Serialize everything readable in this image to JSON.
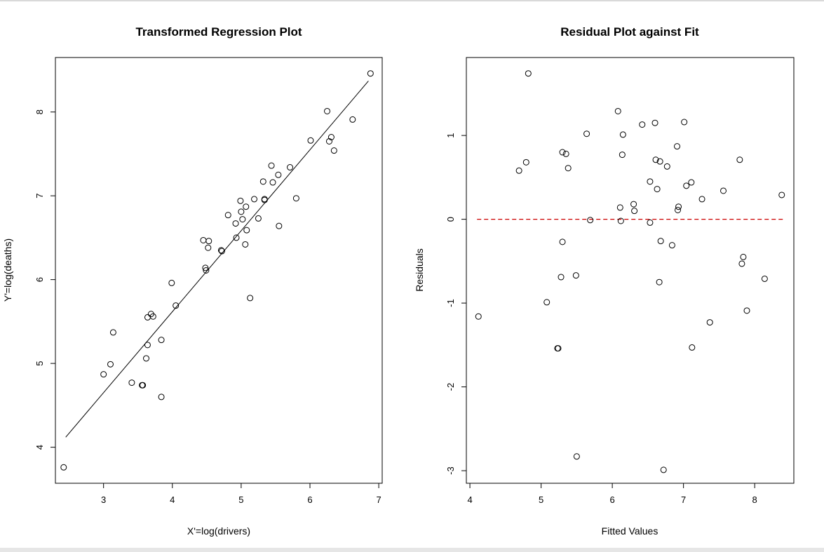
{
  "chart_data": [
    {
      "type": "scatter",
      "title": "Transformed Regression Plot",
      "xlabel": "X'=log(drivers)",
      "ylabel": "Y'=log(deaths)",
      "xlim": [
        2.3,
        7.05
      ],
      "ylim": [
        3.57,
        8.65
      ],
      "xticks": [
        3,
        4,
        5,
        6,
        7
      ],
      "yticks": [
        4,
        5,
        6,
        7,
        8
      ],
      "grid": false,
      "line": {
        "x": [
          2.45,
          6.85
        ],
        "y": [
          4.12,
          8.37
        ]
      },
      "points": [
        [
          2.42,
          3.76
        ],
        [
          3.0,
          4.87
        ],
        [
          3.1,
          4.99
        ],
        [
          3.14,
          5.37
        ],
        [
          3.41,
          4.77
        ],
        [
          3.56,
          4.74
        ],
        [
          3.57,
          4.74
        ],
        [
          3.62,
          5.06
        ],
        [
          3.64,
          5.55
        ],
        [
          3.64,
          5.22
        ],
        [
          3.69,
          5.59
        ],
        [
          3.72,
          5.56
        ],
        [
          3.84,
          5.28
        ],
        [
          3.84,
          4.6
        ],
        [
          3.99,
          5.96
        ],
        [
          4.05,
          5.69
        ],
        [
          4.45,
          6.47
        ],
        [
          4.48,
          6.14
        ],
        [
          4.49,
          6.11
        ],
        [
          4.52,
          6.38
        ],
        [
          4.53,
          6.46
        ],
        [
          4.71,
          6.35
        ],
        [
          4.72,
          6.34
        ],
        [
          4.81,
          6.77
        ],
        [
          4.92,
          6.67
        ],
        [
          4.93,
          6.5
        ],
        [
          4.99,
          6.94
        ],
        [
          5.0,
          6.81
        ],
        [
          5.02,
          6.72
        ],
        [
          5.06,
          6.42
        ],
        [
          5.07,
          6.87
        ],
        [
          5.08,
          6.59
        ],
        [
          5.13,
          5.78
        ],
        [
          5.19,
          6.96
        ],
        [
          5.25,
          6.73
        ],
        [
          5.32,
          7.17
        ],
        [
          5.34,
          6.95
        ],
        [
          5.34,
          6.96
        ],
        [
          5.44,
          7.36
        ],
        [
          5.46,
          7.16
        ],
        [
          5.54,
          7.25
        ],
        [
          5.55,
          6.64
        ],
        [
          5.71,
          7.34
        ],
        [
          5.8,
          6.97
        ],
        [
          6.01,
          7.66
        ],
        [
          6.25,
          8.01
        ],
        [
          6.28,
          7.65
        ],
        [
          6.31,
          7.7
        ],
        [
          6.35,
          7.54
        ],
        [
          6.62,
          7.91
        ],
        [
          6.88,
          8.46
        ]
      ]
    },
    {
      "type": "scatter",
      "title": "Residual Plot against Fit",
      "xlabel": "Fitted Values",
      "ylabel": "Residuals",
      "xlim": [
        3.95,
        8.55
      ],
      "ylim": [
        -3.15,
        1.93
      ],
      "xticks": [
        4,
        5,
        6,
        7,
        8
      ],
      "yticks": [
        -3,
        -2,
        -1,
        0,
        1
      ],
      "grid": false,
      "reference_line": {
        "y": 0,
        "x": [
          4.1,
          8.4
        ],
        "color": "#cc0000",
        "style": "dashed"
      },
      "points": [
        [
          4.12,
          -1.16
        ],
        [
          4.69,
          0.58
        ],
        [
          4.79,
          0.68
        ],
        [
          4.82,
          1.74
        ],
        [
          5.08,
          -0.99
        ],
        [
          5.23,
          -1.54
        ],
        [
          5.24,
          -1.54
        ],
        [
          5.28,
          -0.69
        ],
        [
          5.3,
          -0.27
        ],
        [
          5.3,
          0.8
        ],
        [
          5.35,
          0.78
        ],
        [
          5.38,
          0.61
        ],
        [
          5.49,
          -0.67
        ],
        [
          5.5,
          -2.83
        ],
        [
          5.64,
          1.02
        ],
        [
          5.69,
          -0.01
        ],
        [
          6.08,
          1.29
        ],
        [
          6.11,
          0.14
        ],
        [
          6.12,
          -0.02
        ],
        [
          6.14,
          0.77
        ],
        [
          6.15,
          1.01
        ],
        [
          6.3,
          0.18
        ],
        [
          6.31,
          0.1
        ],
        [
          6.42,
          1.13
        ],
        [
          6.53,
          -0.04
        ],
        [
          6.53,
          0.45
        ],
        [
          6.6,
          1.15
        ],
        [
          6.61,
          0.71
        ],
        [
          6.63,
          0.36
        ],
        [
          6.66,
          -0.75
        ],
        [
          6.67,
          0.69
        ],
        [
          6.68,
          -0.26
        ],
        [
          6.72,
          -2.99
        ],
        [
          6.77,
          0.63
        ],
        [
          6.84,
          -0.31
        ],
        [
          6.91,
          0.87
        ],
        [
          6.92,
          0.11
        ],
        [
          6.93,
          0.15
        ],
        [
          7.01,
          1.16
        ],
        [
          7.04,
          0.4
        ],
        [
          7.11,
          0.44
        ],
        [
          7.12,
          -1.53
        ],
        [
          7.26,
          0.24
        ],
        [
          7.37,
          -1.23
        ],
        [
          7.56,
          0.34
        ],
        [
          7.79,
          0.71
        ],
        [
          7.82,
          -0.53
        ],
        [
          7.84,
          -0.45
        ],
        [
          7.89,
          -1.09
        ],
        [
          8.14,
          -0.71
        ],
        [
          8.38,
          0.29
        ]
      ]
    }
  ]
}
